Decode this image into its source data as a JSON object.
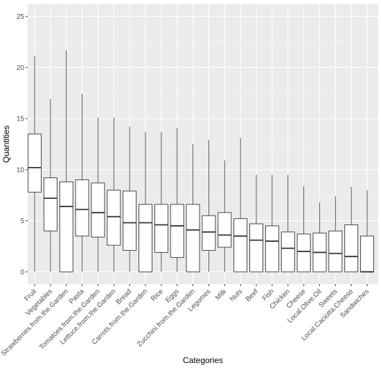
{
  "chart_data": {
    "type": "boxplot",
    "title": "",
    "xlabel": "Categories",
    "ylabel": "Quantities",
    "ylim": [
      -1.2,
      26.2
    ],
    "yticks": [
      0,
      5,
      10,
      15,
      20,
      25
    ],
    "grid": true,
    "background_color": "#ebebeb",
    "grid_color": "#ffffff",
    "box_fill": "#ffffff",
    "box_stroke": "#333333",
    "categories": [
      "Fruit",
      "Vegetables",
      "Strawberries.from.the.Garden",
      "Pasta",
      "Tomatoes.from.the.Garden",
      "Lettuce.from.the.Garden",
      "Bread",
      "Carrots.from.the.Garden",
      "Rice",
      "Eggs",
      "Zucchini.from.the.Garden",
      "Legumes",
      "Milk",
      "Nuts",
      "Beef",
      "Fish",
      "Chicken",
      "Cheese",
      "Local.Olive.Oil",
      "Sweets",
      "Local.Caciotta.Cheese",
      "Sandwiches"
    ],
    "boxes": [
      {
        "min": 0,
        "q1": 7.8,
        "median": 10.2,
        "q3": 13.5,
        "max": 21.1
      },
      {
        "min": 0,
        "q1": 4.0,
        "median": 7.2,
        "q3": 9.2,
        "max": 16.9
      },
      {
        "min": 0,
        "q1": 0,
        "median": 6.4,
        "q3": 8.8,
        "max": 21.7
      },
      {
        "min": 0,
        "q1": 3.5,
        "median": 6.1,
        "q3": 9.0,
        "max": 17.4
      },
      {
        "min": 0,
        "q1": 3.4,
        "median": 5.8,
        "q3": 8.7,
        "max": 15.1
      },
      {
        "min": 0,
        "q1": 2.6,
        "median": 5.4,
        "q3": 8.0,
        "max": 15.1
      },
      {
        "min": 0,
        "q1": 2.1,
        "median": 4.8,
        "q3": 7.9,
        "max": 14.2
      },
      {
        "min": 0,
        "q1": 0,
        "median": 4.8,
        "q3": 6.6,
        "max": 13.7
      },
      {
        "min": 0,
        "q1": 1.9,
        "median": 4.6,
        "q3": 6.6,
        "max": 13.7
      },
      {
        "min": 0,
        "q1": 1.4,
        "median": 4.5,
        "q3": 6.6,
        "max": 14.1
      },
      {
        "min": 0,
        "q1": 0,
        "median": 4.1,
        "q3": 6.6,
        "max": 12.5
      },
      {
        "min": 0,
        "q1": 2.1,
        "median": 3.9,
        "q3": 5.5,
        "max": 12.9
      },
      {
        "min": 0,
        "q1": 2.4,
        "median": 3.6,
        "q3": 5.8,
        "max": 10.9
      },
      {
        "min": 0,
        "q1": 0,
        "median": 3.5,
        "q3": 5.2,
        "max": 13.1
      },
      {
        "min": 0,
        "q1": 0,
        "median": 3.1,
        "q3": 4.7,
        "max": 9.5
      },
      {
        "min": 0,
        "q1": 0,
        "median": 3.0,
        "q3": 4.5,
        "max": 9.5
      },
      {
        "min": 0,
        "q1": 0,
        "median": 2.3,
        "q3": 3.9,
        "max": 9.5
      },
      {
        "min": 0,
        "q1": 0,
        "median": 2.0,
        "q3": 3.7,
        "max": 8.4
      },
      {
        "min": 0,
        "q1": 0,
        "median": 1.9,
        "q3": 3.8,
        "max": 6.8
      },
      {
        "min": 0,
        "q1": 0,
        "median": 1.8,
        "q3": 4.0,
        "max": 7.4
      },
      {
        "min": 0,
        "q1": 0,
        "median": 1.5,
        "q3": 4.6,
        "max": 8.3
      },
      {
        "min": 0,
        "q1": 0,
        "median": 0,
        "q3": 3.5,
        "max": 8.0
      }
    ]
  }
}
